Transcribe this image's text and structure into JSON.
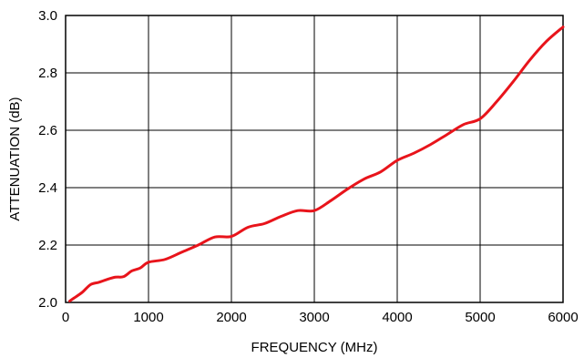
{
  "chart_data": {
    "type": "line",
    "title": "",
    "xlabel": "FREQUENCY (MHz)",
    "ylabel": "ATTENUATION (dB)",
    "xlim": [
      0,
      6000
    ],
    "ylim": [
      2.0,
      3.0
    ],
    "xticks": [
      "0",
      "1000",
      "2000",
      "3000",
      "4000",
      "5000",
      "6000"
    ],
    "yticks": [
      "2.0",
      "2.2",
      "2.4",
      "2.6",
      "2.8",
      "3.0"
    ],
    "grid": true,
    "legend": "none",
    "series": [
      {
        "color": "#e8141b",
        "x": [
          50,
          100,
          200,
          300,
          400,
          500,
          600,
          700,
          800,
          900,
          1000,
          1200,
          1400,
          1600,
          1800,
          2000,
          2200,
          2400,
          2600,
          2800,
          3000,
          3200,
          3400,
          3600,
          3800,
          4000,
          4200,
          4400,
          4600,
          4800,
          5000,
          5200,
          5400,
          5600,
          5800,
          6000
        ],
        "y": [
          2.005,
          2.015,
          2.035,
          2.062,
          2.07,
          2.08,
          2.088,
          2.09,
          2.11,
          2.12,
          2.14,
          2.15,
          2.175,
          2.2,
          2.228,
          2.23,
          2.262,
          2.275,
          2.3,
          2.32,
          2.32,
          2.355,
          2.395,
          2.43,
          2.455,
          2.495,
          2.52,
          2.55,
          2.585,
          2.62,
          2.64,
          2.7,
          2.77,
          2.845,
          2.91,
          2.96
        ]
      }
    ]
  }
}
